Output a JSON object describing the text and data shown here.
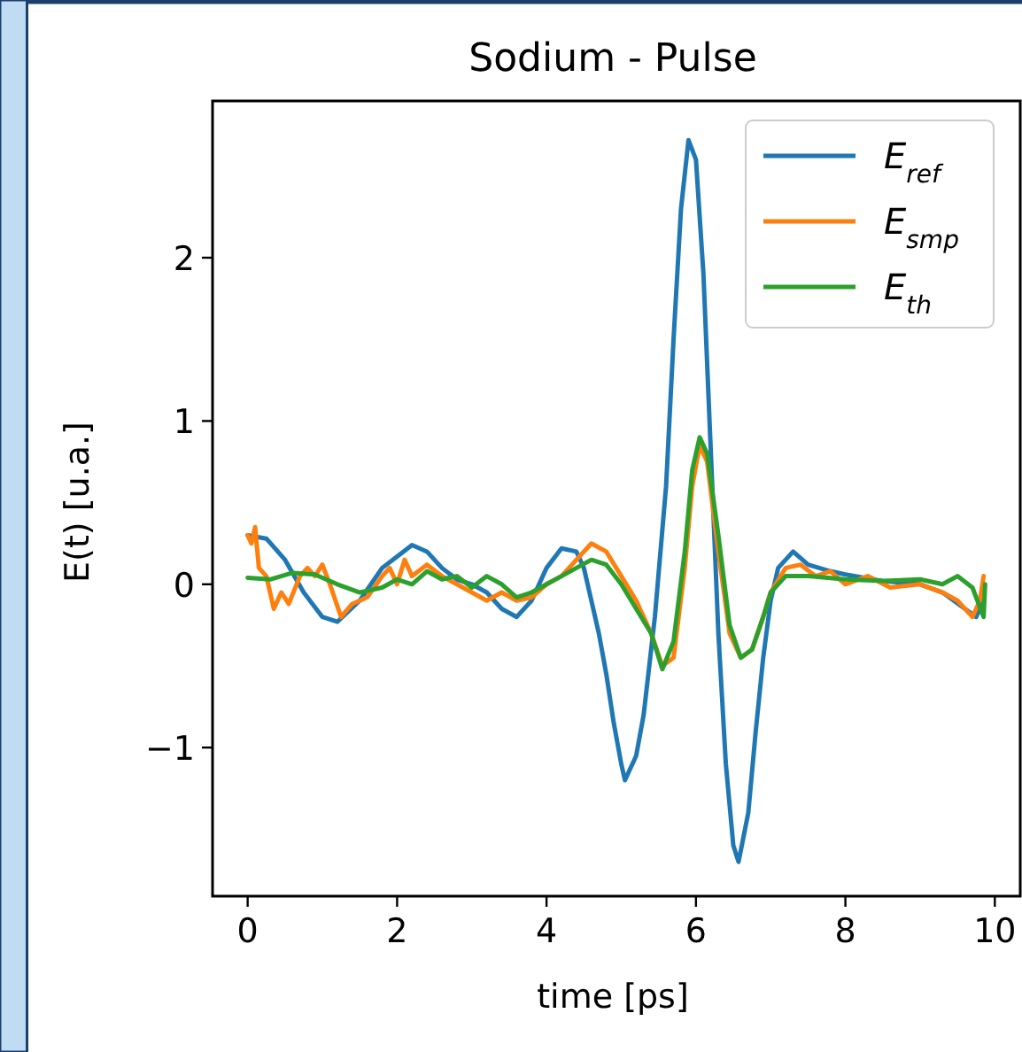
{
  "chart_data": {
    "type": "line",
    "title": "Sodium - Pulse",
    "xlabel": "time [ps]",
    "ylabel": "E(t) [u.a.]",
    "xlim": [
      -0.47,
      10.34
    ],
    "ylim": [
      -1.91,
      2.96
    ],
    "xticks": [
      0,
      2,
      4,
      6,
      8,
      10
    ],
    "yticks": [
      -1,
      0,
      1,
      2
    ],
    "grid": false,
    "legend": "top right",
    "line_style": "solid",
    "marker": "none",
    "series": [
      {
        "name": "E$_{ref}$",
        "color": "#1f77b4",
        "x": [
          0,
          0.25,
          0.5,
          0.75,
          1.0,
          1.2,
          1.5,
          1.8,
          2.0,
          2.2,
          2.4,
          2.6,
          2.8,
          3.0,
          3.2,
          3.4,
          3.6,
          3.8,
          4.0,
          4.2,
          4.4,
          4.5,
          4.6,
          4.7,
          4.8,
          4.9,
          5.0,
          5.05,
          5.2,
          5.3,
          5.45,
          5.6,
          5.7,
          5.8,
          5.9,
          6.0,
          6.1,
          6.2,
          6.3,
          6.4,
          6.5,
          6.57,
          6.7,
          6.8,
          6.9,
          7.0,
          7.1,
          7.3,
          7.5,
          7.8,
          8.0,
          8.5,
          9.0,
          9.3,
          9.6,
          9.75,
          9.85
        ],
        "values": [
          0.3,
          0.28,
          0.15,
          -0.05,
          -0.2,
          -0.23,
          -0.1,
          0.1,
          0.17,
          0.24,
          0.2,
          0.1,
          0.03,
          0.0,
          -0.05,
          -0.15,
          -0.2,
          -0.1,
          0.1,
          0.22,
          0.2,
          0.1,
          -0.1,
          -0.3,
          -0.55,
          -0.85,
          -1.1,
          -1.2,
          -1.05,
          -0.8,
          -0.2,
          0.6,
          1.5,
          2.3,
          2.72,
          2.6,
          1.9,
          0.8,
          -0.3,
          -1.1,
          -1.6,
          -1.7,
          -1.4,
          -0.9,
          -0.45,
          -0.1,
          0.1,
          0.2,
          0.12,
          0.08,
          0.06,
          0.02,
          0.0,
          -0.05,
          -0.15,
          -0.2,
          -0.1
        ]
      },
      {
        "name": "E$_{smp}$",
        "color": "#ff7f0e",
        "x": [
          0,
          0.05,
          0.1,
          0.15,
          0.25,
          0.35,
          0.45,
          0.55,
          0.7,
          0.8,
          0.9,
          1.0,
          1.1,
          1.25,
          1.4,
          1.6,
          1.8,
          1.9,
          2.0,
          2.1,
          2.2,
          2.4,
          2.6,
          2.8,
          3.0,
          3.2,
          3.4,
          3.6,
          3.8,
          4.0,
          4.2,
          4.4,
          4.6,
          4.8,
          5.0,
          5.2,
          5.4,
          5.55,
          5.7,
          5.85,
          5.95,
          6.05,
          6.15,
          6.3,
          6.45,
          6.6,
          6.75,
          6.9,
          7.0,
          7.2,
          7.4,
          7.6,
          7.8,
          8.0,
          8.3,
          8.6,
          9.0,
          9.3,
          9.5,
          9.7,
          9.8,
          9.85
        ],
        "values": [
          0.3,
          0.25,
          0.35,
          0.1,
          0.05,
          -0.15,
          -0.05,
          -0.12,
          0.05,
          0.1,
          0.05,
          0.12,
          0.0,
          -0.2,
          -0.12,
          -0.08,
          0.05,
          0.1,
          0.0,
          0.15,
          0.05,
          0.12,
          0.05,
          0.0,
          -0.05,
          -0.1,
          -0.05,
          -0.1,
          -0.08,
          0.0,
          0.05,
          0.15,
          0.25,
          0.2,
          0.05,
          -0.1,
          -0.3,
          -0.5,
          -0.45,
          0.1,
          0.6,
          0.85,
          0.75,
          0.2,
          -0.3,
          -0.45,
          -0.4,
          -0.2,
          -0.05,
          0.1,
          0.12,
          0.05,
          0.08,
          0.0,
          0.05,
          -0.02,
          0.0,
          -0.05,
          -0.1,
          -0.2,
          -0.1,
          0.05
        ]
      },
      {
        "name": "E$_{th}$",
        "color": "#2ca02c",
        "x": [
          0,
          0.3,
          0.6,
          0.9,
          1.2,
          1.5,
          1.8,
          2.0,
          2.2,
          2.4,
          2.6,
          2.8,
          3.0,
          3.2,
          3.4,
          3.6,
          3.8,
          4.0,
          4.2,
          4.4,
          4.6,
          4.8,
          5.0,
          5.2,
          5.4,
          5.55,
          5.7,
          5.85,
          5.95,
          6.05,
          6.15,
          6.3,
          6.45,
          6.6,
          6.75,
          6.9,
          7.0,
          7.2,
          7.5,
          8.0,
          8.5,
          9.0,
          9.3,
          9.5,
          9.7,
          9.85,
          9.87
        ],
        "values": [
          0.04,
          0.03,
          0.07,
          0.06,
          0.0,
          -0.05,
          -0.02,
          0.03,
          0.0,
          0.08,
          0.03,
          0.05,
          -0.02,
          0.05,
          0.0,
          -0.08,
          -0.05,
          0.0,
          0.05,
          0.1,
          0.15,
          0.12,
          0.0,
          -0.15,
          -0.3,
          -0.52,
          -0.35,
          0.2,
          0.7,
          0.9,
          0.8,
          0.3,
          -0.25,
          -0.45,
          -0.4,
          -0.2,
          -0.05,
          0.05,
          0.05,
          0.03,
          0.02,
          0.03,
          0.0,
          0.05,
          -0.02,
          -0.2,
          0.0
        ]
      }
    ]
  }
}
